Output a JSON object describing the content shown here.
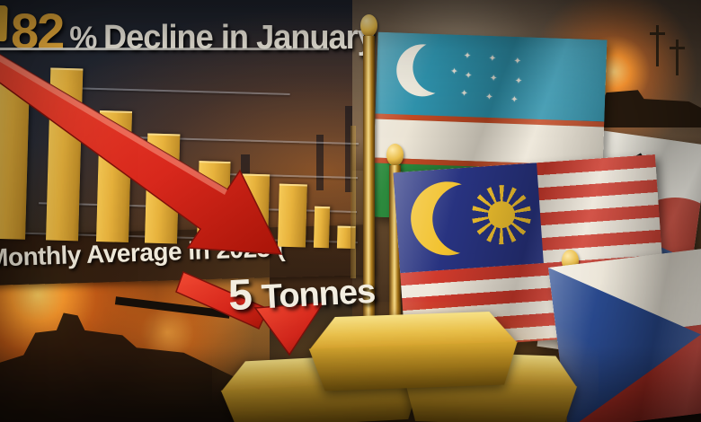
{
  "headline": {
    "stat": "82",
    "percent": "%",
    "rest": "Decline in January"
  },
  "footer": {
    "label": "Monthly Average in 2025 ("
  },
  "callout": {
    "value": "5",
    "unit": "Tonnes"
  },
  "chart_data": {
    "type": "bar",
    "title": "82% Decline in January",
    "categories": [
      "",
      "",
      "",
      "",
      "",
      "",
      "",
      "",
      ""
    ],
    "values": [
      91,
      100,
      76,
      63,
      48,
      41,
      36,
      23,
      12
    ],
    "ylim": [
      0,
      100
    ],
    "unit": "relative height (no axis labels visible)",
    "grid": true,
    "legend": "none",
    "trend": "declining left to right",
    "annotations": [
      "82% Decline in January",
      "Monthly Average in 2025 (",
      "5 Tonnes"
    ]
  },
  "icons": {
    "big_arrow": "decline-arrow-icon",
    "small_arrow": "down-arrow-icon"
  },
  "flags": {
    "items": [
      {
        "name": "Uzbekistan"
      },
      {
        "name": "Malaysia"
      },
      {
        "name": "South Korea"
      },
      {
        "name": "Czech Republic"
      }
    ]
  },
  "scene": {
    "elements": [
      "burning tank battlefield",
      "smoke sky",
      "stacked gold ingots",
      "gold flag poles"
    ]
  },
  "colors": {
    "bar_gold": "#E7B23C",
    "headline_gold": "#F0B13C",
    "text_cream": "#EFE9DA",
    "arrow_red": "#D8281C",
    "chart_bg": "#262B34",
    "uz_blue": "#2F93AD",
    "uz_green": "#2C8A3D",
    "my_blue": "#283380",
    "my_red": "#CF3A2C",
    "kr_red": "#BF3B2B",
    "kr_blue": "#2A4E8F",
    "cz_blue": "#2A4A8F",
    "cz_red": "#C23327"
  }
}
